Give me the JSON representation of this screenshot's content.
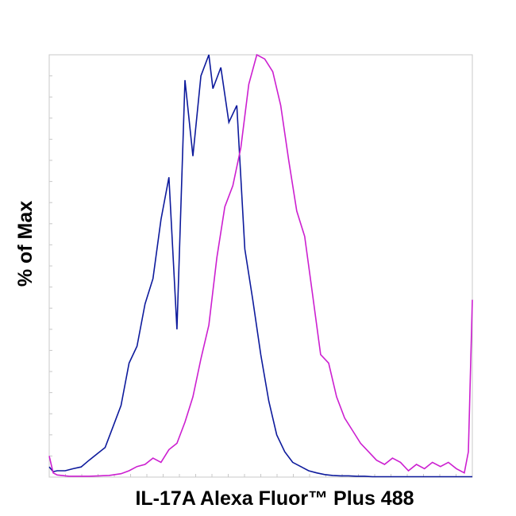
{
  "chart_data": {
    "type": "line",
    "title": "",
    "xlabel": "IL-17A Alexa Fluor™ Plus 488",
    "ylabel": "% of Max",
    "xlim": [
      0,
      106
    ],
    "ylim": [
      0,
      100
    ],
    "grid": false,
    "legend": "none",
    "series": [
      {
        "color": "#0d1a9c",
        "x": [
          0,
          1,
          2,
          4,
          6,
          8,
          10,
          12,
          14,
          16,
          18,
          20,
          22,
          24,
          26,
          28,
          30,
          32,
          34,
          36,
          38,
          40,
          41,
          43,
          45,
          47,
          49,
          51,
          53,
          55,
          57,
          59,
          61,
          63,
          65,
          67,
          69,
          71,
          73,
          75,
          77,
          79,
          81,
          83,
          85,
          90,
          95,
          100,
          106
        ],
        "y": [
          2.4,
          1.3,
          1.5,
          1.5,
          2.0,
          2.4,
          4.0,
          5.5,
          7.0,
          12.0,
          17.0,
          27.0,
          31.0,
          41.0,
          47.0,
          61.0,
          71.0,
          35.0,
          94.0,
          76.0,
          95.0,
          100.0,
          92.0,
          97.0,
          84.0,
          88.0,
          54.0,
          42.0,
          29.0,
          18.0,
          10.0,
          6.0,
          3.5,
          2.5,
          1.5,
          1.0,
          0.6,
          0.4,
          0.3,
          0.3,
          0.2,
          0.2,
          0.1,
          0.1,
          0.1,
          0.1,
          0.1,
          0.1,
          0.1
        ]
      },
      {
        "color": "#cc1fd0",
        "x": [
          0,
          1,
          2,
          5,
          10,
          15,
          18,
          20,
          22,
          24,
          26,
          28,
          30,
          32,
          34,
          36,
          38,
          40,
          42,
          44,
          46,
          48,
          50,
          52,
          54,
          56,
          58,
          60,
          62,
          64,
          66,
          68,
          70,
          72,
          74,
          76,
          78,
          80,
          82,
          84,
          86,
          88,
          90,
          92,
          94,
          96,
          98,
          100,
          102,
          104,
          105,
          106
        ],
        "y": [
          5.0,
          1.0,
          0.5,
          0.2,
          0.2,
          0.4,
          0.8,
          1.5,
          2.5,
          3.0,
          4.5,
          3.5,
          6.5,
          8.0,
          13.0,
          19.0,
          28.0,
          36.0,
          52.0,
          64.0,
          69.0,
          78.0,
          93.0,
          100.0,
          99.0,
          96.0,
          88.0,
          75.0,
          63.0,
          57.0,
          43.0,
          29.0,
          27.0,
          19.0,
          14.0,
          11.0,
          8.0,
          6.0,
          4.0,
          3.0,
          4.5,
          3.5,
          1.5,
          3.0,
          2.0,
          3.5,
          2.5,
          3.5,
          2.0,
          1.0,
          6.0,
          42.0
        ]
      }
    ]
  }
}
